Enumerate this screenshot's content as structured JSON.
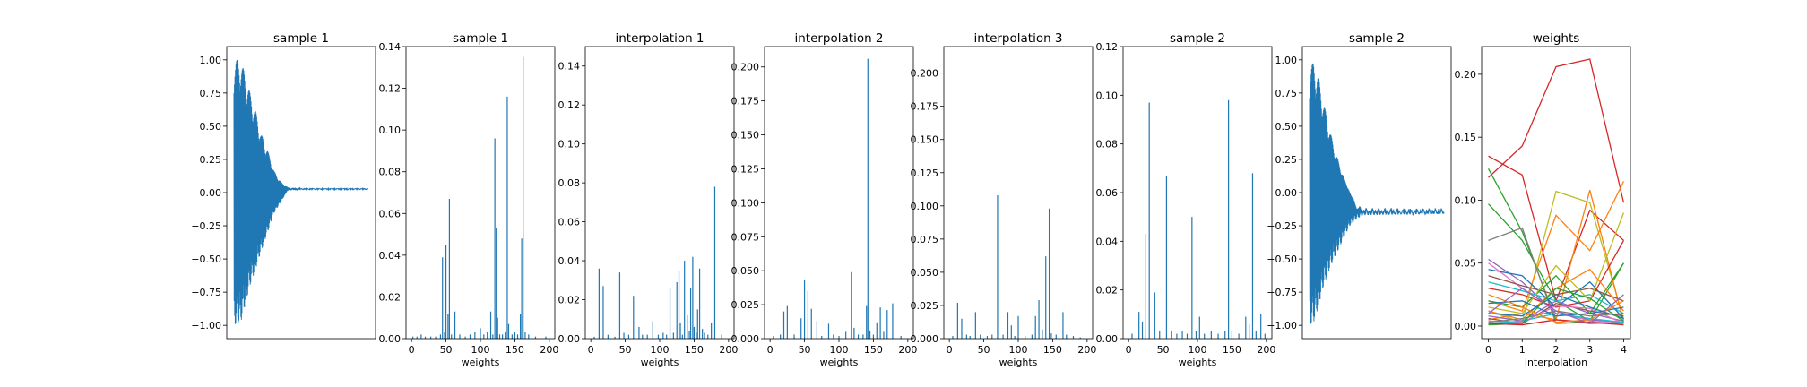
{
  "figure": {
    "background": "#ffffff"
  },
  "chart_data": [
    {
      "type": "line",
      "kind": "waveform",
      "title": "sample 1",
      "xlabel": "",
      "ylabel": "",
      "x_ticks_visible": false,
      "ylim": [
        -1.1,
        1.1
      ],
      "yticks": [
        1.0,
        0.75,
        0.5,
        0.25,
        0.0,
        -0.25,
        -0.5,
        -0.75,
        -1.0
      ],
      "ytick_labels": [
        "1.00",
        "0.75",
        "0.50",
        "0.25",
        "0.00",
        "−0.25",
        "−0.50",
        "−0.75",
        "−1.00"
      ],
      "color": "#1f77b4",
      "envelope": {
        "x_fraction": [
          0.0,
          0.05,
          0.08,
          0.12,
          0.16,
          0.2,
          0.25,
          0.3,
          0.35,
          0.4,
          0.5,
          0.6,
          1.0
        ],
        "upper": [
          1.0,
          1.0,
          0.9,
          0.75,
          0.62,
          0.45,
          0.32,
          0.16,
          0.08,
          0.04,
          0.03,
          0.03,
          0.03
        ],
        "lower": [
          -1.0,
          -0.98,
          -0.86,
          -0.7,
          -0.58,
          -0.45,
          -0.3,
          -0.15,
          -0.07,
          0.02,
          0.03,
          0.03,
          0.03
        ]
      }
    },
    {
      "type": "bar",
      "title": "sample 1",
      "xlabel": "weights",
      "ylabel": "",
      "xlim": [
        -8,
        208
      ],
      "xticks": [
        0,
        50,
        100,
        150,
        200
      ],
      "ylim": [
        0,
        0.14
      ],
      "yticks": [
        0,
        0.02,
        0.04,
        0.06,
        0.08,
        0.1,
        0.12,
        0.14
      ],
      "ytick_labels": [
        "0.00",
        "0.02",
        "0.04",
        "0.06",
        "0.08",
        "0.10",
        "0.12",
        "0.14"
      ],
      "color": "#1f77b4",
      "x": [
        2,
        8,
        14,
        20,
        28,
        35,
        42,
        45,
        48,
        50,
        53,
        55,
        58,
        63,
        70,
        78,
        85,
        92,
        100,
        105,
        110,
        115,
        118,
        121,
        123,
        125,
        128,
        132,
        136,
        139,
        141,
        146,
        150,
        154,
        158,
        160,
        162,
        165,
        170,
        180,
        195
      ],
      "values": [
        0.001,
        0.001,
        0.002,
        0.001,
        0.001,
        0.001,
        0.002,
        0.039,
        0.003,
        0.045,
        0.012,
        0.067,
        0.002,
        0.013,
        0.002,
        0.001,
        0.002,
        0.003,
        0.005,
        0.002,
        0.003,
        0.013,
        0.002,
        0.096,
        0.053,
        0.01,
        0.002,
        0.002,
        0.003,
        0.116,
        0.007,
        0.002,
        0.003,
        0.002,
        0.012,
        0.048,
        0.135,
        0.003,
        0.002,
        0.001,
        0.001
      ]
    },
    {
      "type": "bar",
      "title": "interpolation 1",
      "xlabel": "weights",
      "ylabel": "",
      "xlim": [
        -8,
        208
      ],
      "xticks": [
        0,
        50,
        100,
        150,
        200
      ],
      "ylim": [
        0,
        0.15
      ],
      "yticks": [
        0,
        0.02,
        0.04,
        0.06,
        0.08,
        0.1,
        0.12,
        0.14
      ],
      "ytick_labels": [
        "0.00",
        "0.02",
        "0.04",
        "0.06",
        "0.08",
        "0.10",
        "0.12",
        "0.14"
      ],
      "color": "#1f77b4",
      "x": [
        5,
        12,
        18,
        25,
        35,
        42,
        48,
        55,
        62,
        70,
        75,
        82,
        90,
        98,
        105,
        110,
        115,
        120,
        125,
        128,
        130,
        133,
        136,
        140,
        143,
        145,
        148,
        150,
        153,
        155,
        158,
        162,
        165,
        170,
        175,
        180,
        190
      ],
      "values": [
        0.001,
        0.036,
        0.027,
        0.002,
        0.001,
        0.034,
        0.003,
        0.002,
        0.022,
        0.006,
        0.002,
        0.002,
        0.009,
        0.002,
        0.003,
        0.002,
        0.026,
        0.003,
        0.029,
        0.035,
        0.008,
        0.002,
        0.04,
        0.012,
        0.004,
        0.026,
        0.042,
        0.006,
        0.003,
        0.015,
        0.036,
        0.005,
        0.003,
        0.002,
        0.008,
        0.078,
        0.002
      ]
    },
    {
      "type": "bar",
      "title": "interpolation 2",
      "xlabel": "weights",
      "ylabel": "",
      "xlim": [
        -8,
        208
      ],
      "xticks": [
        0,
        50,
        100,
        150,
        200
      ],
      "ylim": [
        0,
        0.215
      ],
      "yticks": [
        0,
        0.025,
        0.05,
        0.075,
        0.1,
        0.125,
        0.15,
        0.175,
        0.2
      ],
      "ytick_labels": [
        "0.000",
        "0.025",
        "0.050",
        "0.075",
        "0.100",
        "0.125",
        "0.150",
        "0.175",
        "0.200"
      ],
      "color": "#1f77b4",
      "x": [
        5,
        15,
        20,
        25,
        35,
        45,
        50,
        55,
        60,
        68,
        75,
        85,
        92,
        100,
        110,
        118,
        122,
        128,
        135,
        140,
        142,
        145,
        150,
        155,
        160,
        165,
        170,
        178,
        190
      ],
      "values": [
        0.002,
        0.003,
        0.02,
        0.024,
        0.003,
        0.015,
        0.043,
        0.035,
        0.022,
        0.013,
        0.002,
        0.011,
        0.003,
        0.002,
        0.005,
        0.049,
        0.008,
        0.003,
        0.003,
        0.024,
        0.206,
        0.006,
        0.003,
        0.012,
        0.023,
        0.005,
        0.021,
        0.026,
        0.002
      ]
    },
    {
      "type": "bar",
      "title": "interpolation 3",
      "xlabel": "weights",
      "ylabel": "",
      "xlim": [
        -8,
        208
      ],
      "xticks": [
        0,
        50,
        100,
        150,
        200
      ],
      "ylim": [
        0,
        0.22
      ],
      "yticks": [
        0,
        0.025,
        0.05,
        0.075,
        0.1,
        0.125,
        0.15,
        0.175,
        0.2
      ],
      "ytick_labels": [
        "0.000",
        "0.025",
        "0.050",
        "0.075",
        "0.100",
        "0.125",
        "0.150",
        "0.175",
        "0.200"
      ],
      "color": "#1f77b4",
      "x": [
        5,
        12,
        18,
        25,
        30,
        38,
        45,
        55,
        62,
        70,
        78,
        85,
        90,
        95,
        100,
        110,
        120,
        125,
        130,
        135,
        140,
        145,
        148,
        155,
        165,
        170,
        180,
        190
      ],
      "values": [
        0.002,
        0.027,
        0.015,
        0.003,
        0.002,
        0.02,
        0.003,
        0.002,
        0.003,
        0.108,
        0.003,
        0.02,
        0.01,
        0.002,
        0.017,
        0.002,
        0.003,
        0.017,
        0.029,
        0.007,
        0.062,
        0.098,
        0.004,
        0.003,
        0.02,
        0.003,
        0.002,
        0.001
      ]
    },
    {
      "type": "bar",
      "title": "sample 2",
      "xlabel": "weights",
      "ylabel": "",
      "xlim": [
        -8,
        208
      ],
      "xticks": [
        0,
        50,
        100,
        150,
        200
      ],
      "ylim": [
        0,
        0.12
      ],
      "yticks": [
        0,
        0.02,
        0.04,
        0.06,
        0.08,
        0.1,
        0.12
      ],
      "ytick_labels": [
        "0.00",
        "0.02",
        "0.04",
        "0.06",
        "0.08",
        "0.10",
        "0.12"
      ],
      "color": "#1f77b4",
      "x": [
        5,
        15,
        20,
        25,
        30,
        38,
        45,
        55,
        62,
        70,
        78,
        85,
        92,
        98,
        103,
        110,
        120,
        130,
        140,
        145,
        150,
        160,
        170,
        175,
        180,
        185,
        192,
        198
      ],
      "values": [
        0.002,
        0.011,
        0.007,
        0.043,
        0.097,
        0.019,
        0.003,
        0.067,
        0.003,
        0.002,
        0.003,
        0.002,
        0.05,
        0.003,
        0.009,
        0.002,
        0.003,
        0.002,
        0.003,
        0.098,
        0.003,
        0.002,
        0.009,
        0.006,
        0.068,
        0.003,
        0.01,
        0.002
      ]
    },
    {
      "type": "line",
      "kind": "waveform",
      "title": "sample 2",
      "xlabel": "",
      "ylabel": "",
      "x_ticks_visible": false,
      "ylim": [
        -1.1,
        1.1
      ],
      "yticks": [
        1.0,
        0.75,
        0.5,
        0.25,
        0.0,
        -0.25,
        -0.5,
        -0.75,
        -1.0
      ],
      "ytick_labels": [
        "1.00",
        "0.75",
        "0.50",
        "0.25",
        "0.00",
        "−0.25",
        "−0.50",
        "−0.75",
        "−1.00"
      ],
      "color": "#1f77b4",
      "envelope": {
        "x_fraction": [
          0.0,
          0.03,
          0.06,
          0.1,
          0.14,
          0.18,
          0.22,
          0.26,
          0.3,
          0.35,
          0.4,
          1.0
        ],
        "upper": [
          0.95,
          0.98,
          0.9,
          0.7,
          0.52,
          0.35,
          0.22,
          0.1,
          0.0,
          -0.12,
          -0.15,
          -0.16
        ],
        "lower": [
          -1.0,
          -0.98,
          -0.88,
          -0.72,
          -0.6,
          -0.5,
          -0.42,
          -0.33,
          -0.25,
          -0.2,
          -0.17,
          -0.16
        ]
      }
    },
    {
      "type": "line",
      "title": "weights",
      "xlabel": "interpolation",
      "ylabel": "",
      "xlim": [
        -0.2,
        4.2
      ],
      "xticks": [
        0,
        1,
        2,
        3,
        4
      ],
      "ylim": [
        -0.01,
        0.222
      ],
      "yticks": [
        0,
        0.05,
        0.1,
        0.15,
        0.2
      ],
      "ytick_labels": [
        "0.00",
        "0.05",
        "0.10",
        "0.15",
        "0.20"
      ],
      "x": [
        0,
        1,
        2,
        3,
        4
      ],
      "series": [
        {
          "color": "#d62728",
          "values": [
            0.118,
            0.143,
            0.206,
            0.212,
            0.098
          ]
        },
        {
          "color": "#d62728",
          "values": [
            0.135,
            0.12,
            0.02,
            0.092,
            0.068
          ]
        },
        {
          "color": "#2ca02c",
          "values": [
            0.125,
            0.075,
            0.005,
            0.002,
            0.003
          ]
        },
        {
          "color": "#2ca02c",
          "values": [
            0.097,
            0.068,
            0.02,
            0.004,
            0.05
          ]
        },
        {
          "color": "#bcbd22",
          "values": [
            0.012,
            0.003,
            0.107,
            0.098,
            0.005
          ]
        },
        {
          "color": "#ff7f0e",
          "values": [
            0.02,
            0.012,
            0.088,
            0.06,
            0.115
          ]
        },
        {
          "color": "#ff7f0e",
          "values": [
            0.005,
            0.01,
            0.005,
            0.108,
            0.003
          ]
        },
        {
          "color": "#7f7f7f",
          "values": [
            0.068,
            0.078,
            0.002,
            0.003,
            0.002
          ]
        },
        {
          "color": "#9467bd",
          "values": [
            0.053,
            0.035,
            0.01,
            0.005,
            0.003
          ]
        },
        {
          "color": "#e377c2",
          "values": [
            0.05,
            0.03,
            0.012,
            0.004,
            0.002
          ]
        },
        {
          "color": "#1f77b4",
          "values": [
            0.045,
            0.04,
            0.015,
            0.035,
            0.006
          ]
        },
        {
          "color": "#8c564b",
          "values": [
            0.04,
            0.032,
            0.025,
            0.03,
            0.02
          ]
        },
        {
          "color": "#17becf",
          "values": [
            0.035,
            0.028,
            0.02,
            0.025,
            0.01
          ]
        },
        {
          "color": "#d62728",
          "values": [
            0.03,
            0.025,
            0.015,
            0.02,
            0.068
          ]
        },
        {
          "color": "#2ca02c",
          "values": [
            0.02,
            0.015,
            0.04,
            0.01,
            0.05
          ]
        },
        {
          "color": "#bcbd22",
          "values": [
            0.015,
            0.01,
            0.048,
            0.02,
            0.09
          ]
        },
        {
          "color": "#ff7f0e",
          "values": [
            0.012,
            0.005,
            0.03,
            0.045,
            0.012
          ]
        },
        {
          "color": "#1f77b4",
          "values": [
            0.01,
            0.008,
            0.025,
            0.015,
            0.006
          ]
        },
        {
          "color": "#9467bd",
          "values": [
            0.008,
            0.004,
            0.02,
            0.01,
            0.004
          ]
        },
        {
          "color": "#8c564b",
          "values": [
            0.006,
            0.002,
            0.018,
            0.012,
            0.008
          ]
        },
        {
          "color": "#e377c2",
          "values": [
            0.004,
            0.003,
            0.016,
            0.014,
            0.002
          ]
        },
        {
          "color": "#7f7f7f",
          "values": [
            0.003,
            0.006,
            0.012,
            0.008,
            0.01
          ]
        },
        {
          "color": "#17becf",
          "values": [
            0.002,
            0.004,
            0.01,
            0.006,
            0.003
          ]
        },
        {
          "color": "#2ca02c",
          "values": [
            0.001,
            0.002,
            0.03,
            0.022,
            0.004
          ]
        },
        {
          "color": "#d62728",
          "values": [
            0.002,
            0.001,
            0.005,
            0.003,
            0.001
          ]
        },
        {
          "color": "#1f77b4",
          "values": [
            0.018,
            0.02,
            0.008,
            0.01,
            0.015
          ]
        },
        {
          "color": "#ff7f0e",
          "values": [
            0.025,
            0.015,
            0.003,
            0.005,
            0.02
          ]
        },
        {
          "color": "#9467bd",
          "values": [
            0.01,
            0.03,
            0.012,
            0.002,
            0.025
          ]
        }
      ]
    }
  ]
}
